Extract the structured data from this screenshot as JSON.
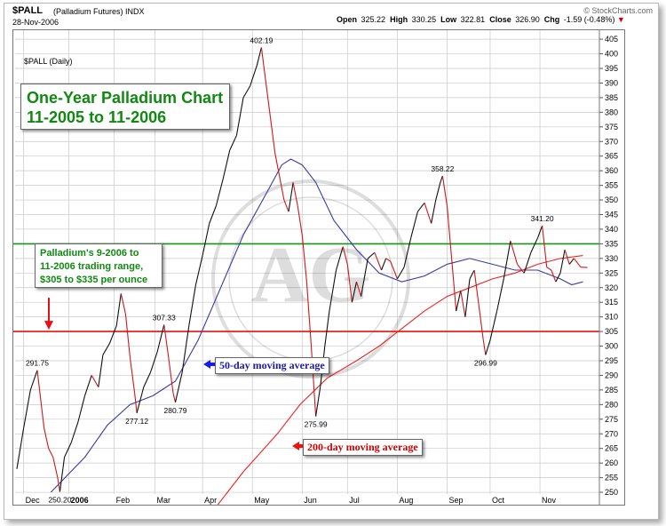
{
  "header": {
    "symbol": "$PALL",
    "symbol_desc": "(Palladium Futures)",
    "exchange": "INDX",
    "date": "28-Nov-2006",
    "open_label": "Open",
    "open_value": "325.22",
    "high_label": "High",
    "high_value": "330.25",
    "low_label": "Low",
    "low_value": "322.81",
    "close_label": "Close",
    "close_value": "326.90",
    "chg_label": "Chg",
    "chg_value": "-1.59 (-0.48%)",
    "chg_arrow": "▼",
    "brand": "© StockCharts.com",
    "panel_label": "$PALL (Daily)"
  },
  "colors": {
    "price_up": "#111111",
    "price_down": "#d01818",
    "ma50": "#3a3aa0",
    "ma200": "#ee2222",
    "resistance": "#159615",
    "support": "#e81010",
    "grid": "#c8c8c8",
    "callout_text": "#118811"
  },
  "annotations": {
    "title_line1": "One-Year Palladium Chart",
    "title_line2": "11-2005 to 11-2006",
    "range_line1": "Palladium's 9-2006 to",
    "range_line2": "11-2006 trading range,",
    "range_line3": "$305 to $335 per ounce",
    "ma50_label": "50-day moving average",
    "ma200_label": "200-day moving average"
  },
  "chart_data": {
    "type": "line",
    "title": "One-Year Palladium Chart",
    "subtitle": "11-2005 to 11-2006",
    "xlabel": "",
    "ylabel": "",
    "ylim": [
      245,
      407
    ],
    "y_ticks": [
      250,
      255,
      260,
      265,
      270,
      275,
      280,
      285,
      290,
      295,
      300,
      305,
      310,
      315,
      320,
      325,
      330,
      335,
      340,
      345,
      350,
      355,
      360,
      365,
      370,
      375,
      380,
      385,
      390,
      395,
      400,
      405
    ],
    "x_tick_labels": [
      "Dec",
      "2006",
      "Feb",
      "Mar",
      "Apr",
      "May",
      "Jun",
      "Jul",
      "Aug",
      "Sep",
      "Oct",
      "Nov"
    ],
    "x_tick_index": [
      3,
      23,
      43,
      61,
      82,
      104,
      126,
      146,
      168,
      190,
      209,
      231
    ],
    "n_days": 253,
    "grid": true,
    "axis_side": "right",
    "series": [
      {
        "name": "$PALL",
        "kind": "price",
        "points": [
          [
            0,
            258
          ],
          [
            3,
            272
          ],
          [
            6,
            285
          ],
          [
            9,
            291.75
          ],
          [
            12,
            272
          ],
          [
            14,
            265
          ],
          [
            16,
            262
          ],
          [
            18,
            255
          ],
          [
            19,
            250.2
          ],
          [
            21,
            262
          ],
          [
            24,
            267
          ],
          [
            27,
            274
          ],
          [
            30,
            283
          ],
          [
            33,
            290
          ],
          [
            36,
            286
          ],
          [
            38,
            297
          ],
          [
            41,
            301
          ],
          [
            44,
            307
          ],
          [
            46,
            318
          ],
          [
            48,
            311
          ],
          [
            50,
            296
          ],
          [
            52,
            284
          ],
          [
            53,
            277.12
          ],
          [
            56,
            286
          ],
          [
            59,
            291
          ],
          [
            62,
            298
          ],
          [
            65,
            307.33
          ],
          [
            67,
            296
          ],
          [
            69,
            284
          ],
          [
            70,
            280.79
          ],
          [
            73,
            291
          ],
          [
            76,
            307
          ],
          [
            79,
            321
          ],
          [
            82,
            331
          ],
          [
            85,
            342
          ],
          [
            88,
            348
          ],
          [
            91,
            357
          ],
          [
            94,
            367
          ],
          [
            97,
            372
          ],
          [
            100,
            385
          ],
          [
            103,
            389
          ],
          [
            106,
            396
          ],
          [
            108,
            402.19
          ],
          [
            110,
            390
          ],
          [
            112,
            378
          ],
          [
            114,
            366
          ],
          [
            116,
            358
          ],
          [
            118,
            350
          ],
          [
            120,
            346
          ],
          [
            122,
            356
          ],
          [
            124,
            348
          ],
          [
            126,
            338
          ],
          [
            128,
            322
          ],
          [
            130,
            300
          ],
          [
            132,
            275.99
          ],
          [
            134,
            286
          ],
          [
            136,
            300
          ],
          [
            138,
            312
          ],
          [
            141,
            326
          ],
          [
            144,
            334
          ],
          [
            146,
            328
          ],
          [
            148,
            315
          ],
          [
            150,
            322
          ],
          [
            152,
            317
          ],
          [
            155,
            330
          ],
          [
            158,
            332
          ],
          [
            161,
            326
          ],
          [
            163,
            330
          ],
          [
            165,
            329
          ],
          [
            168,
            323
          ],
          [
            171,
            327
          ],
          [
            174,
            337
          ],
          [
            177,
            346
          ],
          [
            180,
            349
          ],
          [
            183,
            342
          ],
          [
            185,
            350
          ],
          [
            187,
            356
          ],
          [
            188,
            358.22
          ],
          [
            190,
            348
          ],
          [
            192,
            330
          ],
          [
            194,
            312
          ],
          [
            196,
            319
          ],
          [
            198,
            310
          ],
          [
            200,
            323
          ],
          [
            202,
            326
          ],
          [
            204,
            314
          ],
          [
            206,
            302
          ],
          [
            207,
            296.99
          ],
          [
            209,
            302
          ],
          [
            212,
            312
          ],
          [
            215,
            323
          ],
          [
            218,
            336
          ],
          [
            221,
            328
          ],
          [
            224,
            325
          ],
          [
            227,
            332
          ],
          [
            230,
            337
          ],
          [
            232,
            341.2
          ],
          [
            234,
            327
          ],
          [
            236,
            326
          ],
          [
            238,
            322
          ],
          [
            240,
            325
          ],
          [
            242,
            333
          ],
          [
            244,
            328
          ],
          [
            246,
            330
          ],
          [
            249,
            327
          ],
          [
            252,
            326.9
          ]
        ]
      },
      {
        "name": "50-day moving average",
        "kind": "ma50",
        "points": [
          [
            15,
            250
          ],
          [
            30,
            262
          ],
          [
            40,
            273
          ],
          [
            50,
            280
          ],
          [
            60,
            283
          ],
          [
            70,
            288
          ],
          [
            80,
            302
          ],
          [
            90,
            320
          ],
          [
            100,
            338
          ],
          [
            110,
            352
          ],
          [
            117,
            362
          ],
          [
            121,
            364
          ],
          [
            126,
            362
          ],
          [
            132,
            356
          ],
          [
            140,
            343
          ],
          [
            150,
            333
          ],
          [
            160,
            325
          ],
          [
            170,
            322
          ],
          [
            180,
            324
          ],
          [
            190,
            328
          ],
          [
            200,
            330
          ],
          [
            210,
            328
          ],
          [
            220,
            326
          ],
          [
            230,
            326
          ],
          [
            240,
            323
          ],
          [
            245,
            321
          ],
          [
            250,
            322
          ]
        ]
      },
      {
        "name": "200-day moving average",
        "kind": "ma200",
        "points": [
          [
            88,
            245
          ],
          [
            100,
            257
          ],
          [
            115,
            270
          ],
          [
            125,
            280
          ],
          [
            137,
            289
          ],
          [
            150,
            295
          ],
          [
            160,
            300
          ],
          [
            170,
            306
          ],
          [
            180,
            312
          ],
          [
            190,
            317
          ],
          [
            200,
            320
          ],
          [
            210,
            323
          ],
          [
            220,
            325
          ],
          [
            230,
            328
          ],
          [
            240,
            330
          ],
          [
            250,
            331
          ]
        ]
      }
    ],
    "horizontal_lines": [
      {
        "name": "resistance",
        "value": 335
      },
      {
        "name": "support",
        "value": 305
      }
    ],
    "point_labels": [
      {
        "text": "291.75",
        "x": 9,
        "value": 291.75,
        "pos": "above"
      },
      {
        "text": "250.20",
        "x": 19,
        "value": 250.2,
        "pos": "below"
      },
      {
        "text": "277.12",
        "x": 53,
        "value": 277.12,
        "pos": "below"
      },
      {
        "text": "307.33",
        "x": 65,
        "value": 307.33,
        "pos": "above"
      },
      {
        "text": "280.79",
        "x": 70,
        "value": 280.79,
        "pos": "below"
      },
      {
        "text": "402.19",
        "x": 108,
        "value": 402.19,
        "pos": "above"
      },
      {
        "text": "275.99",
        "x": 132,
        "value": 275.99,
        "pos": "below"
      },
      {
        "text": "358.22",
        "x": 188,
        "value": 358.22,
        "pos": "above"
      },
      {
        "text": "296.99",
        "x": 207,
        "value": 296.99,
        "pos": "below"
      },
      {
        "text": "341.20",
        "x": 232,
        "value": 341.2,
        "pos": "above"
      }
    ]
  }
}
